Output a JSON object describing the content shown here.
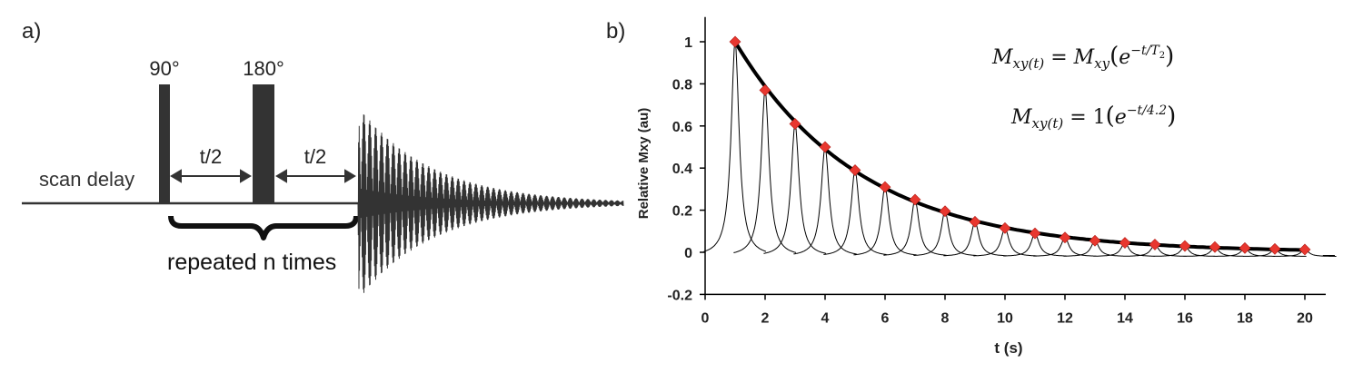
{
  "panel_a": {
    "label": "a)",
    "pulse_90": "90°",
    "pulse_180": "180°",
    "scan_delay": "scan delay",
    "interval_left": "t/2",
    "interval_right": "t/2",
    "repeat_text": "repeated n times"
  },
  "panel_b": {
    "label": "b)",
    "equation1": {
      "lhs": "M",
      "lhs_sub": "xy(t)",
      "eq": " = ",
      "rhs": "M",
      "rhs_sub": "xy",
      "paren_open": "(",
      "base": "e",
      "exponent": "−t/T",
      "exponent_sub": "2",
      "paren_close": ")"
    },
    "equation2": {
      "lhs": "M",
      "lhs_sub": "xy(t)",
      "eq": " = ",
      "coef": "1",
      "paren_open": "(",
      "base": "e",
      "exponent": "−t/4.2",
      "paren_close": ")"
    }
  },
  "colors": {
    "marker": "#e8372f",
    "line": "#000000",
    "pulse": "#333333"
  },
  "chart_data": {
    "type": "scatter",
    "xlabel": "t (s)",
    "ylabel": "Relative Mxy (au)",
    "xlim": [
      0,
      21
    ],
    "ylim": [
      -0.2,
      1.1
    ],
    "xticks": [
      0,
      2,
      4,
      6,
      8,
      10,
      12,
      14,
      16,
      18,
      20
    ],
    "yticks": [
      -0.2,
      0,
      0.2,
      0.4,
      0.6,
      0.8,
      1
    ],
    "ytick_labels": [
      "-0.2",
      "0",
      "0.2",
      "0.4",
      "0.6",
      "0.8",
      "1"
    ],
    "T2": 4.2,
    "series": [
      {
        "type": "scatter",
        "marker": "diamond",
        "x": [
          1,
          2,
          3,
          4,
          5,
          6,
          7,
          8,
          9,
          10,
          11,
          12,
          13,
          14,
          15,
          16,
          17,
          18,
          19,
          20
        ],
        "y": [
          1.0,
          0.77,
          0.61,
          0.5,
          0.39,
          0.31,
          0.25,
          0.195,
          0.145,
          0.115,
          0.09,
          0.07,
          0.055,
          0.045,
          0.037,
          0.03,
          0.025,
          0.02,
          0.016,
          0.013
        ]
      }
    ]
  }
}
